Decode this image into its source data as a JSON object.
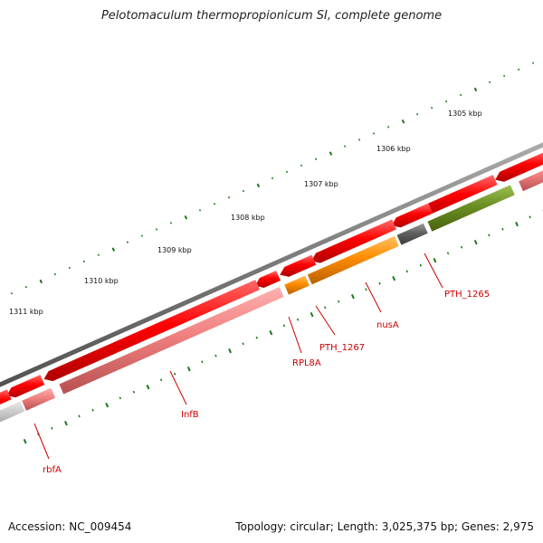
{
  "title": "Pelotomaculum thermopropionicum SI, complete genome",
  "footer": {
    "accession": "Accession: NC_009454",
    "topology": "Topology: circular; Length: 3,025,375 bp; Genes: 2,975"
  },
  "kbp_labels": [
    "1305 kbp",
    "1306 kbp",
    "1307 kbp",
    "1308 kbp",
    "1309 kbp",
    "1310 kbp",
    "1311 kbp"
  ],
  "gene_labels": [
    "PTH_1265",
    "nusA",
    "PTH_1267",
    "RPL8A",
    "InfB",
    "rbfA"
  ],
  "colors": {
    "backbone": "#7a7a7a",
    "cds": "#ff0000",
    "gene_pink": "#f08080",
    "orange": "#ff8c00",
    "dark_gray": "#606060",
    "olive": "#6b8e23",
    "light_gray": "#c8c8c8",
    "ticks": "#1a7a1a",
    "label": "#cc0000"
  }
}
